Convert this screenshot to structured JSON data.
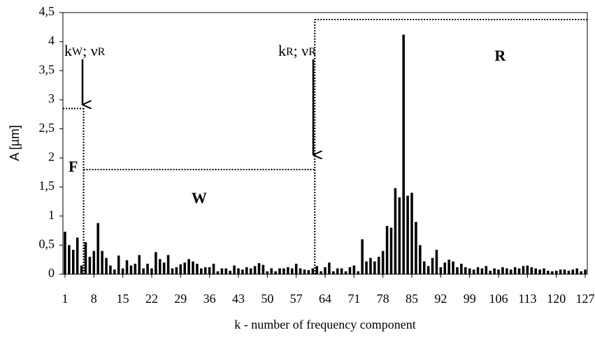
{
  "chart_data": {
    "type": "bar",
    "x": [
      1,
      2,
      3,
      4,
      5,
      6,
      7,
      8,
      9,
      10,
      11,
      12,
      13,
      14,
      15,
      16,
      17,
      18,
      19,
      20,
      21,
      22,
      23,
      24,
      25,
      26,
      27,
      28,
      29,
      30,
      31,
      32,
      33,
      34,
      35,
      36,
      37,
      38,
      39,
      40,
      41,
      42,
      43,
      44,
      45,
      46,
      47,
      48,
      49,
      50,
      51,
      52,
      53,
      54,
      55,
      56,
      57,
      58,
      59,
      60,
      61,
      62,
      63,
      64,
      65,
      66,
      67,
      68,
      69,
      70,
      71,
      72,
      73,
      74,
      75,
      76,
      77,
      78,
      79,
      80,
      81,
      82,
      83,
      84,
      85,
      86,
      87,
      88,
      89,
      90,
      91,
      92,
      93,
      94,
      95,
      96,
      97,
      98,
      99,
      100,
      101,
      102,
      103,
      104,
      105,
      106,
      107,
      108,
      109,
      110,
      111,
      112,
      113,
      114,
      115,
      116,
      117,
      118,
      119,
      120,
      121,
      122,
      123,
      124,
      125,
      126,
      127
    ],
    "values": [
      0.73,
      0.5,
      0.42,
      0.63,
      0.15,
      0.55,
      0.3,
      0.4,
      0.88,
      0.4,
      0.28,
      0.15,
      0.08,
      0.32,
      0.1,
      0.24,
      0.15,
      0.18,
      0.33,
      0.1,
      0.18,
      0.1,
      0.38,
      0.26,
      0.2,
      0.33,
      0.1,
      0.12,
      0.17,
      0.2,
      0.26,
      0.22,
      0.18,
      0.1,
      0.12,
      0.12,
      0.18,
      0.05,
      0.1,
      0.1,
      0.06,
      0.15,
      0.1,
      0.08,
      0.12,
      0.1,
      0.14,
      0.19,
      0.16,
      0.05,
      0.1,
      0.05,
      0.1,
      0.1,
      0.12,
      0.1,
      0.18,
      0.1,
      0.08,
      0.07,
      0.1,
      0.14,
      0.05,
      0.12,
      0.2,
      0.05,
      0.1,
      0.1,
      0.05,
      0.12,
      0.15,
      0.05,
      0.6,
      0.22,
      0.28,
      0.22,
      0.3,
      0.4,
      0.83,
      0.8,
      1.48,
      1.32,
      4.12,
      1.35,
      1.4,
      0.9,
      0.5,
      0.22,
      0.14,
      0.28,
      0.42,
      0.12,
      0.2,
      0.25,
      0.22,
      0.12,
      0.18,
      0.12,
      0.1,
      0.08,
      0.12,
      0.1,
      0.14,
      0.06,
      0.1,
      0.08,
      0.12,
      0.1,
      0.08,
      0.12,
      0.1,
      0.14,
      0.15,
      0.12,
      0.1,
      0.08,
      0.1,
      0.06,
      0.05,
      0.06,
      0.08,
      0.08,
      0.06,
      0.08,
      0.1,
      0.05,
      0.08
    ],
    "color": "#000000",
    "xlim": [
      0.5,
      127.5
    ],
    "xticks": [
      1,
      8,
      15,
      22,
      29,
      36,
      43,
      50,
      57,
      64,
      71,
      78,
      85,
      92,
      99,
      106,
      113,
      120,
      127
    ],
    "ylim": [
      0,
      4.5
    ],
    "yticks": [
      0,
      {
        "value": 0.5,
        "label": "0,5"
      },
      1,
      {
        "value": 1.5,
        "label": "1,5"
      },
      2,
      {
        "value": 2.5,
        "label": "2,5"
      },
      3,
      {
        "value": 3.5,
        "label": "3,5"
      },
      4,
      {
        "value": 4.5,
        "label": "4,5"
      }
    ],
    "x_label": "k -  number of frequency component",
    "y_label": "A [µm]",
    "regions": [
      {
        "label": "F",
        "from": 0.5,
        "to": 5.5,
        "level": 2.85
      },
      {
        "label": "W",
        "from": 5.5,
        "to": 61.5,
        "level": 1.8
      },
      {
        "label": "R",
        "from": 61.5,
        "to": 127.5,
        "level": 4.38
      }
    ],
    "annotations": [
      {
        "parts": [
          "k",
          "W",
          "; ν",
          "R"
        ]
      },
      {
        "parts": [
          "k",
          "R",
          "; ν",
          "R"
        ]
      }
    ]
  }
}
